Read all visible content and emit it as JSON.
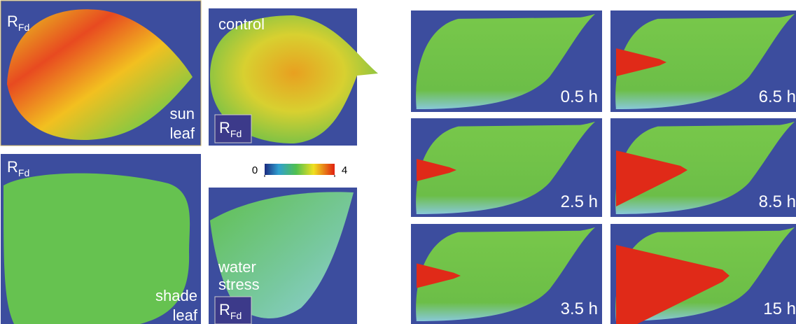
{
  "sun_leaf": {
    "rfd": {
      "main": "R",
      "sub": "Fd"
    },
    "caption": [
      "sun",
      "leaf"
    ]
  },
  "shade_leaf": {
    "rfd": {
      "main": "R",
      "sub": "Fd"
    },
    "caption": [
      "shade",
      "leaf"
    ]
  },
  "control": {
    "caption": "control",
    "rfd": {
      "main": "R",
      "sub": "Fd"
    }
  },
  "colorbar": {
    "ticks": [
      0,
      4
    ]
  },
  "water_stress": {
    "caption": [
      "water",
      "stress"
    ],
    "rfd": {
      "main": "R",
      "sub": "Fd"
    }
  },
  "time_panels": [
    "0.5 h",
    "6.5 h",
    "2.5 h",
    "8.5 h",
    "3.5 h",
    "15 h"
  ]
}
